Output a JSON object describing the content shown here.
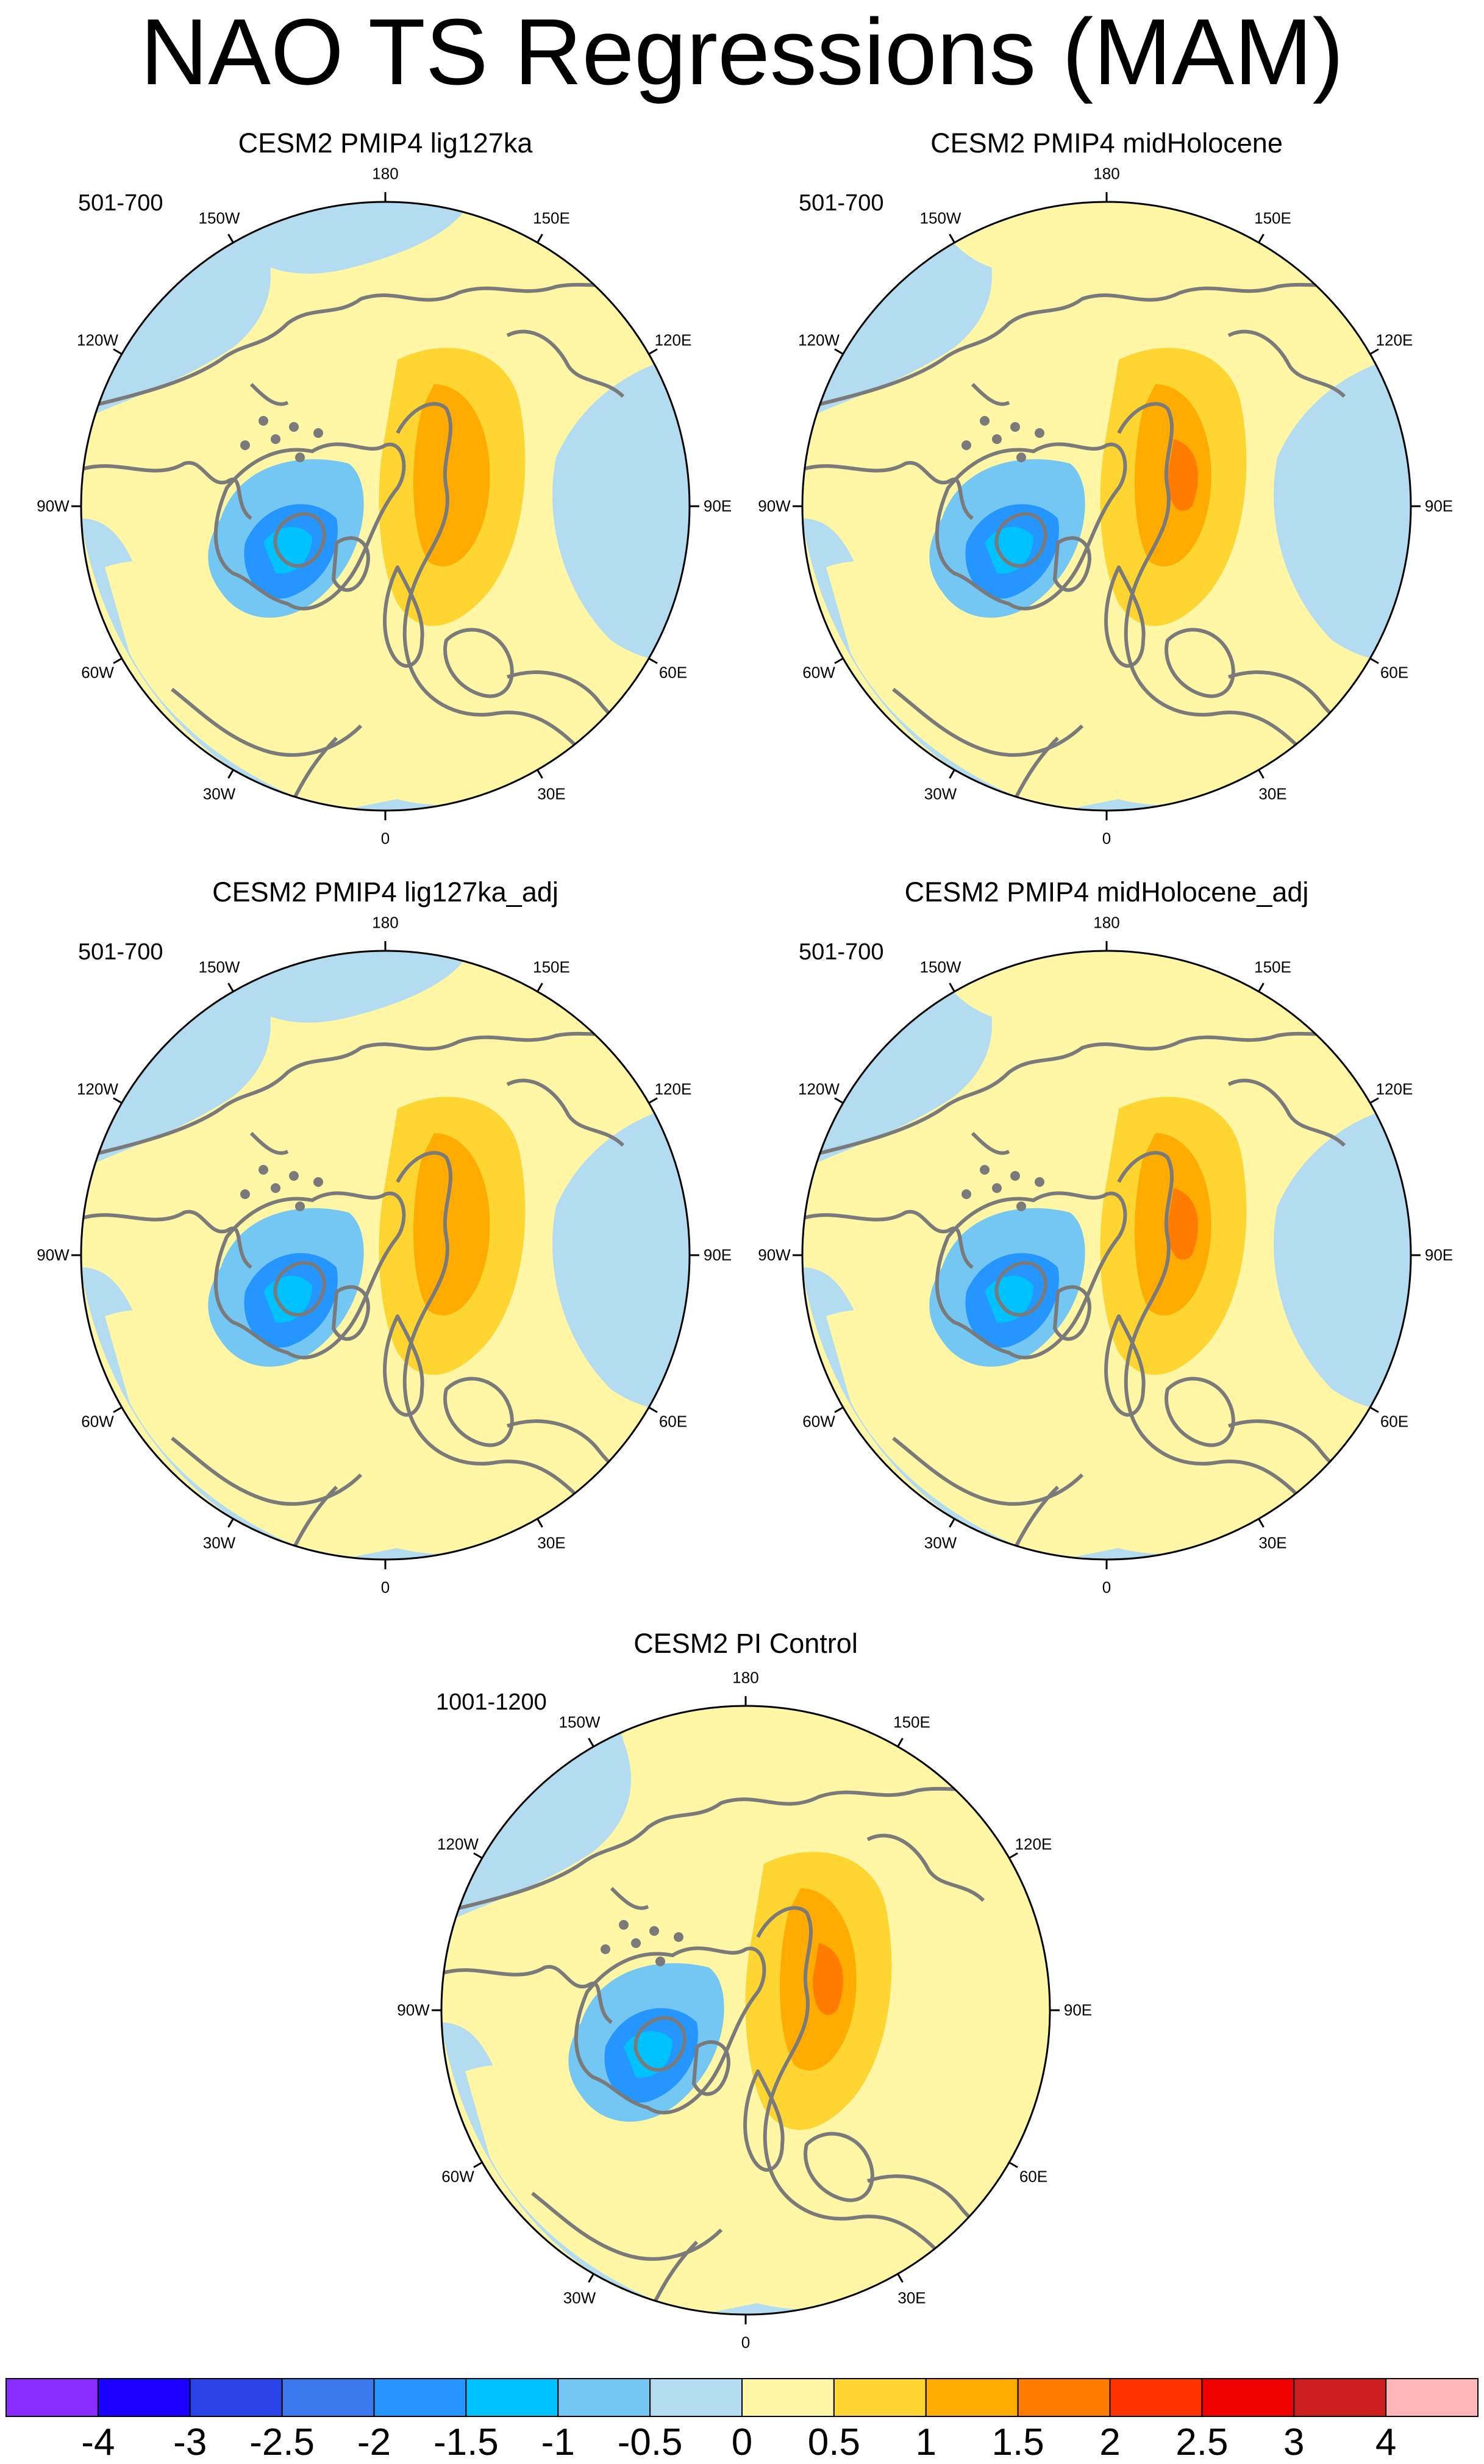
{
  "title": "NAO TS Regressions (MAM)",
  "panels": [
    {
      "title": "CESM2 PMIP4 lig127ka",
      "period": "501-700",
      "variant": "lig"
    },
    {
      "title": "CESM2 PMIP4 midHolocene",
      "period": "501-700",
      "variant": "mh"
    },
    {
      "title": "CESM2 PMIP4 lig127ka_adj",
      "period": "501-700",
      "variant": "lig"
    },
    {
      "title": "CESM2 PMIP4 midHolocene_adj",
      "period": "501-700",
      "variant": "mh"
    },
    {
      "title": "CESM2 PI Control",
      "period": "1001-1200",
      "variant": "pi"
    }
  ],
  "longitude_labels": {
    "deg180": "180",
    "deg150e": "150E",
    "deg120e": "120E",
    "deg90e": "90E",
    "deg60e": "60E",
    "deg30e": "30E",
    "deg0": "0",
    "deg30w": "30W",
    "deg60w": "60W",
    "deg90w": "90W",
    "deg120w": "120W",
    "deg150w": "150W"
  },
  "colorbar": {
    "ticks": [
      "-4",
      "-3",
      "-2.5",
      "-2",
      "-1.5",
      "-1",
      "-0.5",
      "0",
      "0.5",
      "1",
      "1.5",
      "2",
      "2.5",
      "3",
      "4"
    ],
    "colors": [
      "#8a2bff",
      "#1a00ff",
      "#2a44e8",
      "#3a78ee",
      "#2596ff",
      "#00c2ff",
      "#74c7f2",
      "#b4dcf1",
      "#fff7a6",
      "#ffd531",
      "#ffab00",
      "#ff7c00",
      "#ff3300",
      "#ee0000",
      "#cc1e1e",
      "#ffb6b6"
    ]
  }
}
